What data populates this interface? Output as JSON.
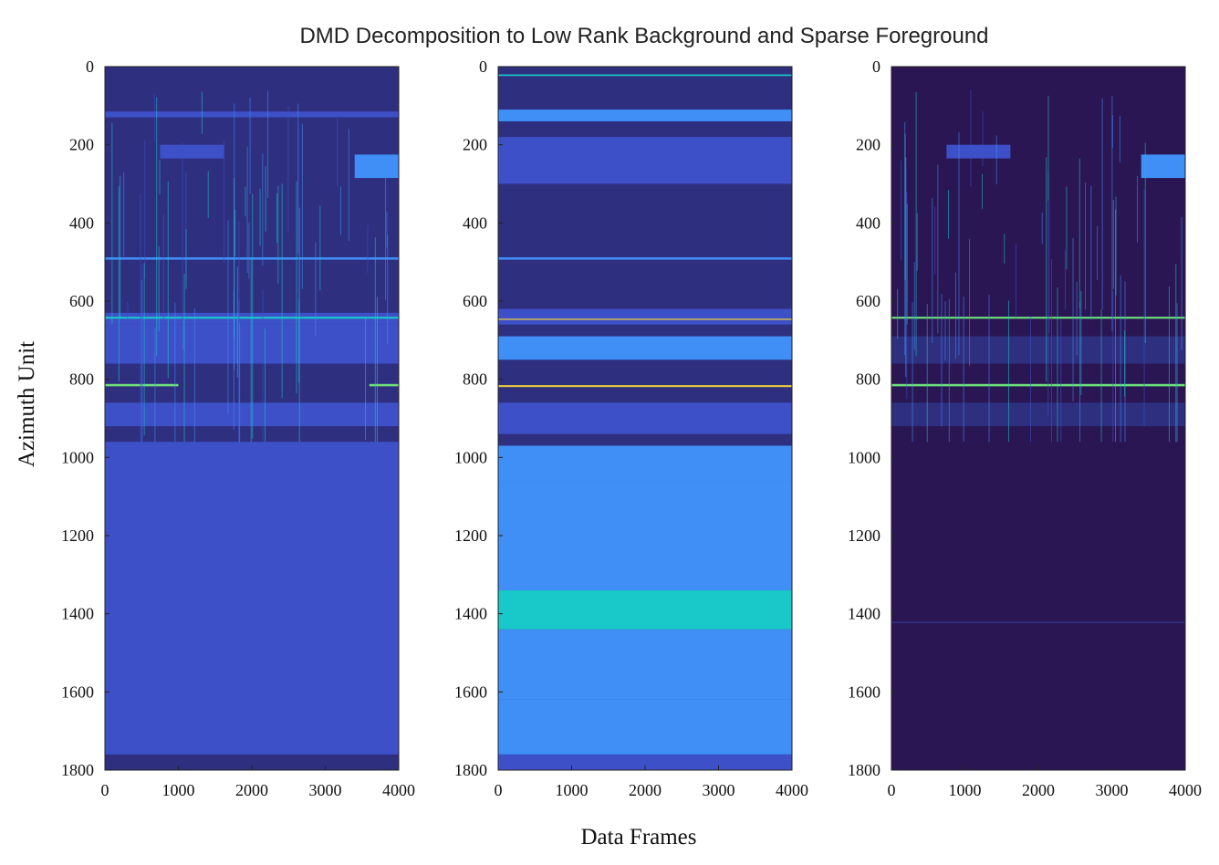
{
  "chart_data": {
    "type": "heatmap",
    "title": "DMD Decomposition to Low Rank Background and Sparse Foreground",
    "xlabel": "Data Frames",
    "ylabel": "Azimuth Unit",
    "colormap": [
      "#2b1654",
      "#2f2f80",
      "#3d50c8",
      "#3f8ff7",
      "#19c8c8",
      "#6de07a",
      "#e8c840"
    ],
    "panels": [
      {
        "xlim": [
          0,
          4000
        ],
        "ylim": [
          1800,
          0
        ],
        "x_ticks": [
          "0",
          "1000",
          "2000",
          "3000",
          "4000"
        ],
        "y_ticks": [
          "0",
          "200",
          "400",
          "600",
          "800",
          "1000",
          "1200",
          "1400",
          "1600",
          "1800"
        ],
        "base_level": 1,
        "bands": [
          {
            "y0": 0,
            "y1": 110,
            "level": 1
          },
          {
            "y0": 115,
            "y1": 130,
            "level": 2
          },
          {
            "y0": 130,
            "y1": 480,
            "level": 1
          },
          {
            "y0": 488,
            "y1": 494,
            "level": 3
          },
          {
            "y0": 630,
            "y1": 660,
            "level": 2
          },
          {
            "y0": 640,
            "y1": 645,
            "level": 4
          },
          {
            "y0": 660,
            "y1": 760,
            "level": 2
          },
          {
            "y0": 812,
            "y1": 818,
            "level": 5
          },
          {
            "y0": 860,
            "y1": 920,
            "level": 1.5
          },
          {
            "y0": 960,
            "y1": 1800,
            "level": 2
          },
          {
            "y0": 1140,
            "y1": 1160,
            "level": 1.5
          },
          {
            "y0": 1300,
            "y1": 1500,
            "level": 2.3
          },
          {
            "y0": 1690,
            "y1": 1760,
            "level": 1.5
          },
          {
            "y0": 1760,
            "y1": 1800,
            "level": 1
          }
        ],
        "blocks": [
          {
            "x0": 750,
            "x1": 1620,
            "y0": 200,
            "y1": 235,
            "level": 2.2
          },
          {
            "x0": 3400,
            "x1": 4000,
            "y0": 225,
            "y1": 285,
            "level": 3.2
          },
          {
            "x0": 1000,
            "x1": 3600,
            "y0": 770,
            "y1": 840,
            "level": 0.6
          }
        ],
        "streaks": true
      },
      {
        "xlim": [
          0,
          4000
        ],
        "ylim": [
          1800,
          0
        ],
        "x_ticks": [
          "0",
          "1000",
          "2000",
          "3000",
          "4000"
        ],
        "y_ticks": [
          "0",
          "200",
          "400",
          "600",
          "800",
          "1000",
          "1200",
          "1400",
          "1600",
          "1800"
        ],
        "base_level": 1.3,
        "bands": [
          {
            "y0": 20,
            "y1": 24,
            "level": 4
          },
          {
            "y0": 110,
            "y1": 140,
            "level": 2.5
          },
          {
            "y0": 180,
            "y1": 300,
            "level": 2
          },
          {
            "y0": 488,
            "y1": 494,
            "level": 3
          },
          {
            "y0": 620,
            "y1": 660,
            "level": 2.3
          },
          {
            "y0": 645,
            "y1": 648,
            "level": 5.5
          },
          {
            "y0": 690,
            "y1": 750,
            "level": 3
          },
          {
            "y0": 815,
            "y1": 820,
            "level": 6
          },
          {
            "y0": 860,
            "y1": 940,
            "level": 2.3
          },
          {
            "y0": 970,
            "y1": 1060,
            "level": 2.6
          },
          {
            "y0": 1060,
            "y1": 1340,
            "level": 2.8
          },
          {
            "y0": 1340,
            "y1": 1440,
            "level": 3.8
          },
          {
            "y0": 1440,
            "y1": 1620,
            "level": 3
          },
          {
            "y0": 1620,
            "y1": 1760,
            "level": 2.8
          },
          {
            "y0": 1760,
            "y1": 1800,
            "level": 1.5
          }
        ],
        "blocks": [],
        "streaks": false
      },
      {
        "xlim": [
          0,
          4000
        ],
        "ylim": [
          1800,
          0
        ],
        "x_ticks": [
          "0",
          "1000",
          "2000",
          "3000",
          "4000"
        ],
        "y_ticks": [
          "0",
          "200",
          "400",
          "600",
          "800",
          "1000",
          "1200",
          "1400",
          "1600",
          "1800"
        ],
        "base_level": 0,
        "bands": [
          {
            "y0": 0,
            "y1": 960,
            "level": 0.4
          },
          {
            "y0": 640,
            "y1": 645,
            "level": 4.5
          },
          {
            "y0": 690,
            "y1": 760,
            "level": 1
          },
          {
            "y0": 812,
            "y1": 818,
            "level": 5
          },
          {
            "y0": 860,
            "y1": 920,
            "level": 0.8
          },
          {
            "y0": 1420,
            "y1": 1424,
            "level": 1
          }
        ],
        "blocks": [
          {
            "x0": 750,
            "x1": 1620,
            "y0": 200,
            "y1": 235,
            "level": 2.2
          },
          {
            "x0": 3400,
            "x1": 4000,
            "y0": 225,
            "y1": 285,
            "level": 3.2
          }
        ],
        "streaks": true
      }
    ]
  }
}
